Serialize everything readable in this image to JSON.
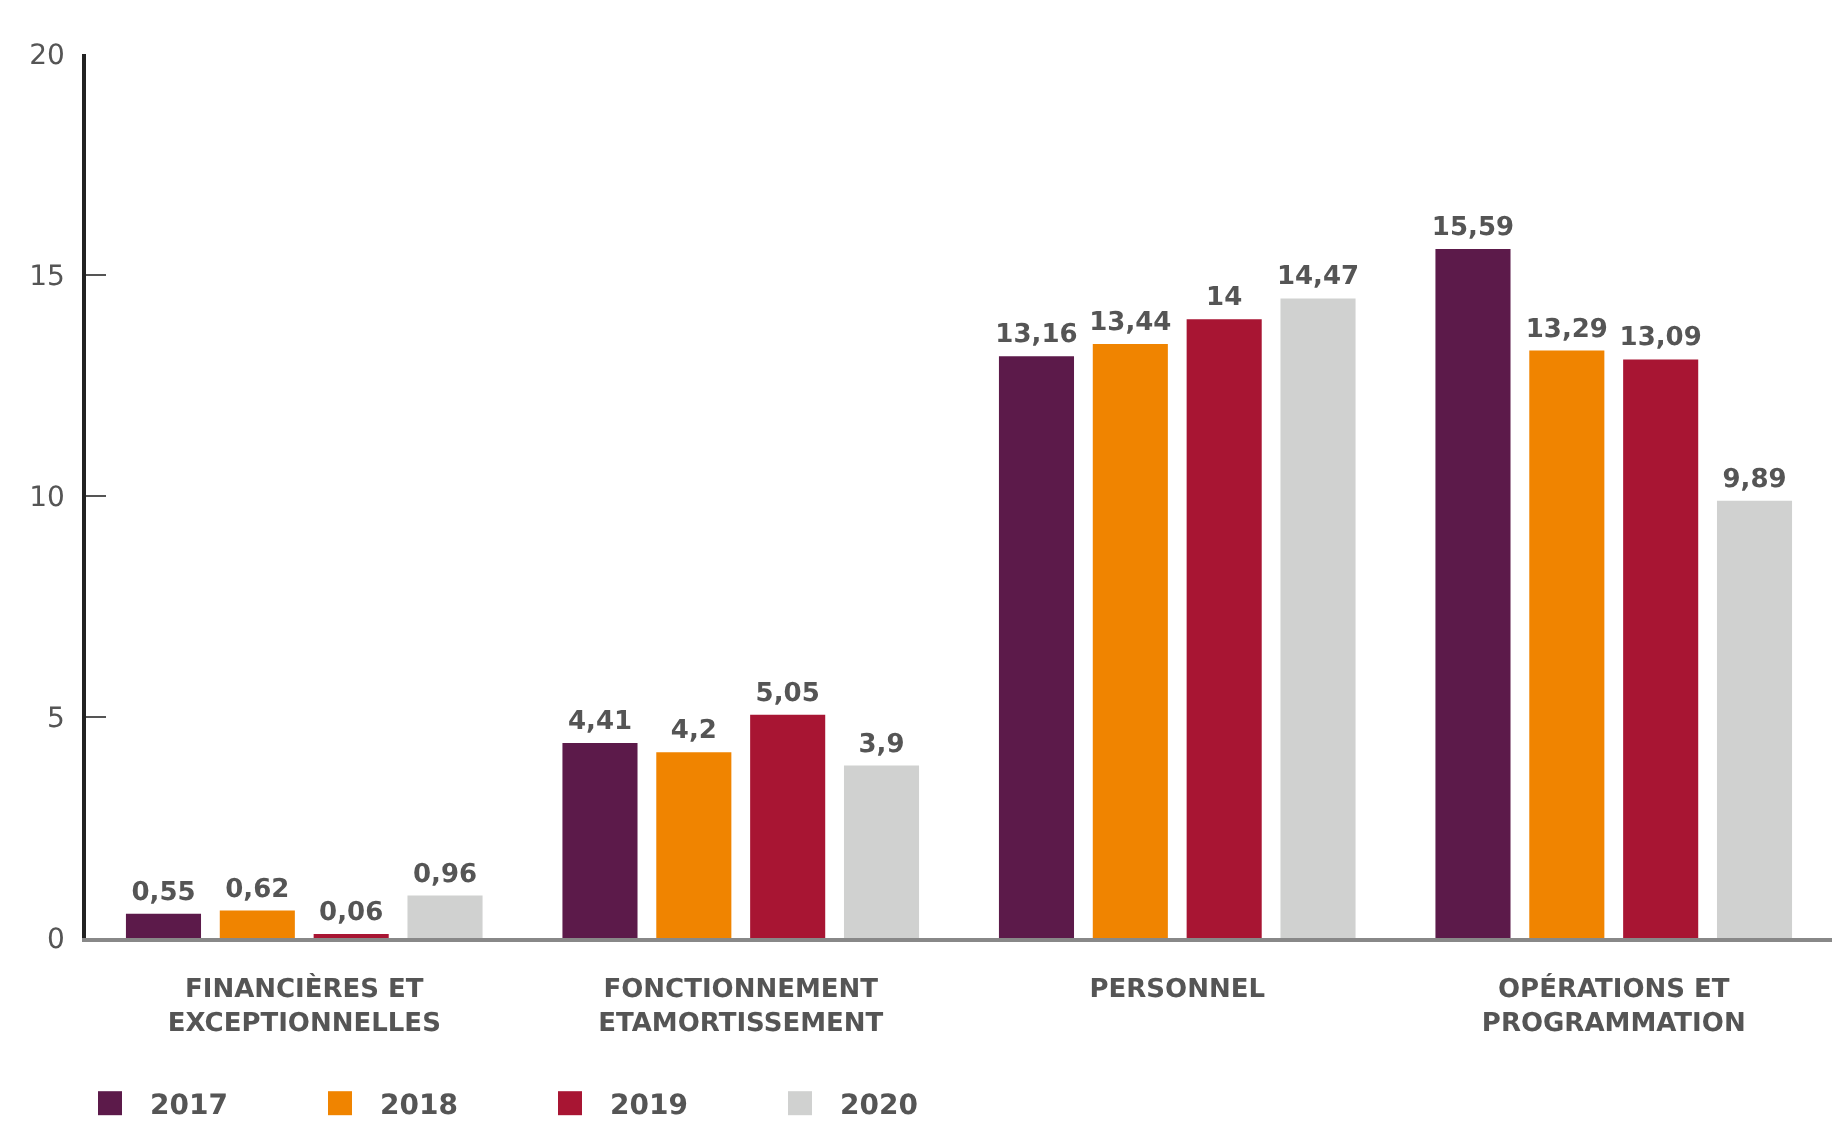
{
  "chart_data": {
    "type": "bar",
    "categories": [
      "FINANCIÈRES ET\nEXCEPTIONNELLES",
      "FONCTIONNEMENT\nETAMORTISSEMENT",
      "PERSONNEL",
      "OPÉRATIONS ET\nPROGRAMMATION"
    ],
    "series": [
      {
        "name": "2017",
        "color": "#5c1a4a",
        "values": [
          0.55,
          4.41,
          13.16,
          15.59
        ],
        "value_labels": [
          "0,55",
          "4,41",
          "13,16",
          "15,59"
        ]
      },
      {
        "name": "2018",
        "color": "#f08400",
        "values": [
          0.62,
          4.2,
          13.44,
          13.29
        ],
        "value_labels": [
          "0,62",
          "4,2",
          "13,44",
          "13,29"
        ]
      },
      {
        "name": "2019",
        "color": "#a81533",
        "values": [
          0.06,
          5.05,
          14,
          13.09
        ],
        "value_labels": [
          "0,06",
          "5,05",
          "14",
          "13,09"
        ]
      },
      {
        "name": "2020",
        "color": "#d0d1d0",
        "values": [
          0.96,
          3.9,
          14.47,
          9.89
        ],
        "value_labels": [
          "0,96",
          "3,9",
          "14,47",
          "9,89"
        ]
      }
    ],
    "ylim": [
      0,
      20
    ],
    "yticks": [
      0,
      5,
      10,
      15,
      20
    ],
    "legend": "bottom left"
  }
}
